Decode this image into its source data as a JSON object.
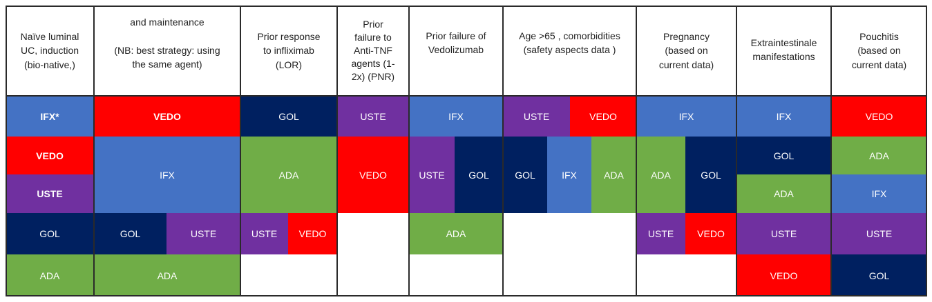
{
  "colors": {
    "IFX": "#4472c4",
    "VEDO": "#ff0000",
    "USTE": "#7030a0",
    "GOL": "#002060",
    "ADA": "#70ad47",
    "empty": "#ffffff"
  },
  "headers": [
    "Naïve luminal\nUC, induction\n(bio-native,)",
    "and maintenance\n\n(NB: best strategy: using\nthe same agent)",
    "Prior response\nto infliximab\n(LOR)",
    "Prior\nfailure to\nAnti-TNF\nagents (1-\n2x) (PNR)",
    "Prior failure of\nVedolizumab",
    "Age >65 , comorbidities\n(safety aspects data )",
    "Pregnancy\n(based on\ncurrent data)",
    "Extraintestinale\nmanifestations",
    "Pouchitis\n(based on\ncurrent data)"
  ],
  "columns": [
    {
      "name": "naive-luminal-uc",
      "cells": [
        {
          "label": "IFX*",
          "drug": "IFX",
          "bold": true
        },
        {
          "label": "VEDO",
          "drug": "VEDO",
          "bold": true
        },
        {
          "label": "USTE",
          "drug": "USTE",
          "bold": true
        },
        {
          "label": "GOL",
          "drug": "GOL"
        },
        {
          "label": "ADA",
          "drug": "ADA"
        }
      ]
    },
    {
      "name": "maintenance",
      "cells": [
        {
          "label": "VEDO",
          "drug": "VEDO",
          "bold": true
        },
        {
          "label": "IFX",
          "drug": "IFX"
        },
        {
          "label": "GOL",
          "drug": "GOL"
        },
        {
          "label": "USTE",
          "drug": "USTE"
        },
        {
          "label": "ADA",
          "drug": "ADA"
        }
      ]
    },
    {
      "name": "prior-response-infliximab",
      "cells": [
        {
          "label": "GOL",
          "drug": "GOL"
        },
        {
          "label": "ADA",
          "drug": "ADA"
        },
        {
          "label": "USTE",
          "drug": "USTE"
        },
        {
          "label": "VEDO",
          "drug": "VEDO"
        },
        {
          "label": "",
          "drug": "empty"
        }
      ]
    },
    {
      "name": "prior-failure-anti-tnf",
      "cells": [
        {
          "label": "USTE",
          "drug": "USTE"
        },
        {
          "label": "VEDO",
          "drug": "VEDO"
        },
        {
          "label": "",
          "drug": "empty"
        },
        {
          "label": "",
          "drug": "empty"
        }
      ]
    },
    {
      "name": "prior-failure-vedolizumab",
      "cells": [
        {
          "label": "IFX",
          "drug": "IFX"
        },
        {
          "label": "USTE",
          "drug": "USTE"
        },
        {
          "label": "GOL",
          "drug": "GOL"
        },
        {
          "label": "ADA",
          "drug": "ADA"
        },
        {
          "label": "",
          "drug": "empty"
        }
      ]
    },
    {
      "name": "age-comorbidities",
      "cells": [
        {
          "label": "USTE",
          "drug": "USTE"
        },
        {
          "label": "VEDO",
          "drug": "VEDO"
        },
        {
          "label": "GOL",
          "drug": "GOL"
        },
        {
          "label": "IFX",
          "drug": "IFX"
        },
        {
          "label": "ADA",
          "drug": "ADA"
        },
        {
          "label": "",
          "drug": "empty"
        },
        {
          "label": "",
          "drug": "empty"
        }
      ]
    },
    {
      "name": "pregnancy",
      "cells": [
        {
          "label": "IFX",
          "drug": "IFX"
        },
        {
          "label": "ADA",
          "drug": "ADA"
        },
        {
          "label": "GOL",
          "drug": "GOL"
        },
        {
          "label": "USTE",
          "drug": "USTE"
        },
        {
          "label": "VEDO",
          "drug": "VEDO"
        },
        {
          "label": "",
          "drug": "empty"
        }
      ]
    },
    {
      "name": "extraintestinal",
      "cells": [
        {
          "label": "IFX",
          "drug": "IFX"
        },
        {
          "label": "GOL",
          "drug": "GOL"
        },
        {
          "label": "ADA",
          "drug": "ADA"
        },
        {
          "label": "USTE",
          "drug": "USTE"
        },
        {
          "label": "VEDO",
          "drug": "VEDO"
        }
      ]
    },
    {
      "name": "pouchitis",
      "cells": [
        {
          "label": "VEDO",
          "drug": "VEDO"
        },
        {
          "label": "ADA",
          "drug": "ADA"
        },
        {
          "label": "IFX",
          "drug": "IFX"
        },
        {
          "label": "USTE",
          "drug": "USTE"
        },
        {
          "label": "GOL",
          "drug": "GOL"
        }
      ]
    }
  ]
}
